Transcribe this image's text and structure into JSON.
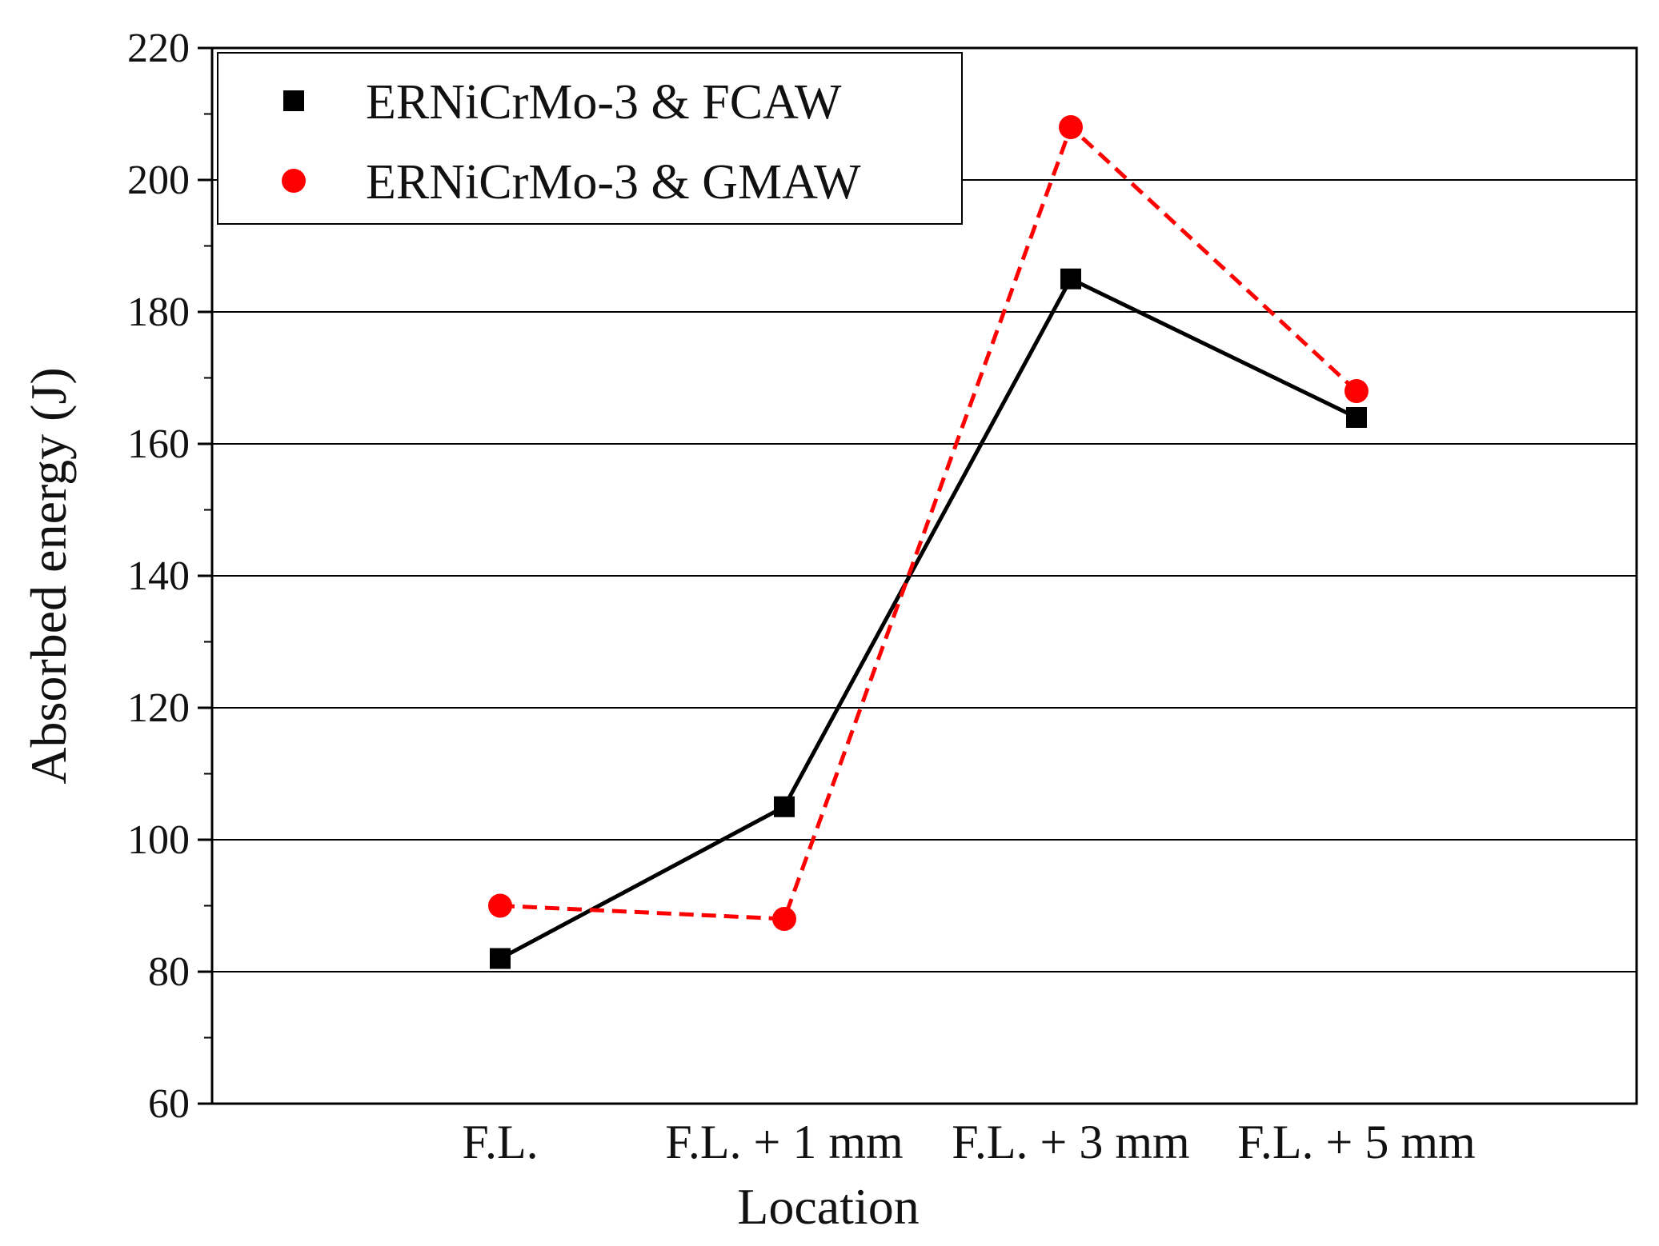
{
  "chart_data": {
    "type": "line",
    "title": "",
    "xlabel": "Location",
    "ylabel": "Absorbed energy (J)",
    "categories": [
      "F.L.",
      "F.L. + 1 mm",
      "F.L. + 3 mm",
      "F.L. + 5 mm"
    ],
    "ylim": [
      60,
      220
    ],
    "yticks": [
      60,
      80,
      100,
      120,
      140,
      160,
      180,
      200,
      220
    ],
    "grid": "horizontal",
    "legend_position": "top-left",
    "series": [
      {
        "name": "ERNiCrMo-3 & FCAW",
        "values": [
          82,
          105,
          185,
          164
        ],
        "color": "#000000",
        "marker": "square",
        "line_style": "solid"
      },
      {
        "name": "ERNiCrMo-3 & GMAW",
        "values": [
          90,
          88,
          208,
          168
        ],
        "color": "#ff0000",
        "marker": "circle",
        "line_style": "dashed"
      }
    ]
  }
}
